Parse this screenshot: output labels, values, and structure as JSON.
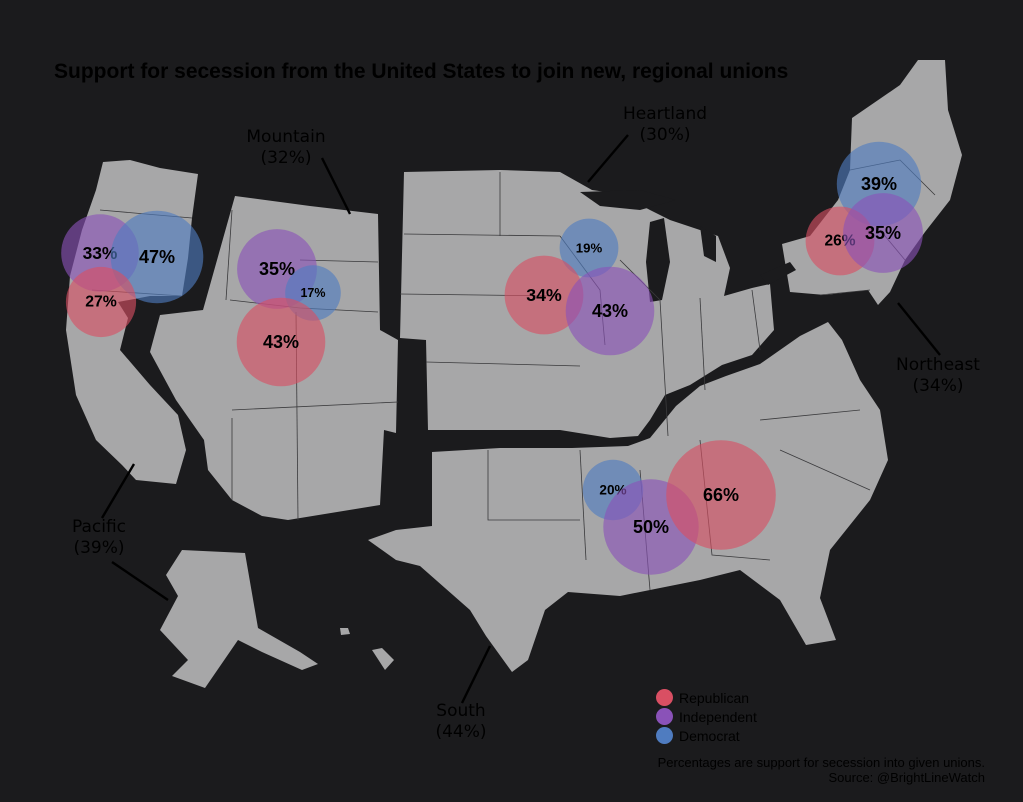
{
  "title": "Support for secession from the United States to join new, regional unions",
  "colors": {
    "background": "#1b1b1d",
    "land": "#a7a7a8",
    "republican": "#d94f63",
    "independent": "#8a52b8",
    "democrat": "#4f7cc0"
  },
  "regions": [
    {
      "name": "Mountain",
      "pct": "(32%)"
    },
    {
      "name": "Heartland",
      "pct": "(30%)"
    },
    {
      "name": "Northeast",
      "pct": "(34%)"
    },
    {
      "name": "Pacific",
      "pct": "(39%)"
    },
    {
      "name": "South",
      "pct": "(44%)"
    }
  ],
  "bubbles": [
    {
      "region": "Pacific",
      "party": "Independent",
      "label": "33%",
      "value": 33
    },
    {
      "region": "Pacific",
      "party": "Democrat",
      "label": "47%",
      "value": 47
    },
    {
      "region": "Pacific",
      "party": "Republican",
      "label": "27%",
      "value": 27
    },
    {
      "region": "Mountain",
      "party": "Independent",
      "label": "35%",
      "value": 35
    },
    {
      "region": "Mountain",
      "party": "Democrat",
      "label": "17%",
      "value": 17
    },
    {
      "region": "Mountain",
      "party": "Republican",
      "label": "43%",
      "value": 43
    },
    {
      "region": "Heartland",
      "party": "Democrat",
      "label": "19%",
      "value": 19
    },
    {
      "region": "Heartland",
      "party": "Republican",
      "label": "34%",
      "value": 34
    },
    {
      "region": "Heartland",
      "party": "Independent",
      "label": "43%",
      "value": 43
    },
    {
      "region": "Northeast",
      "party": "Democrat",
      "label": "39%",
      "value": 39
    },
    {
      "region": "Northeast",
      "party": "Republican",
      "label": "26%",
      "value": 26
    },
    {
      "region": "Northeast",
      "party": "Independent",
      "label": "35%",
      "value": 35
    },
    {
      "region": "South",
      "party": "Democrat",
      "label": "20%",
      "value": 20
    },
    {
      "region": "South",
      "party": "Independent",
      "label": "50%",
      "value": 50
    },
    {
      "region": "South",
      "party": "Republican",
      "label": "66%",
      "value": 66
    }
  ],
  "legend": [
    {
      "party": "Republican",
      "label": "Republican"
    },
    {
      "party": "Independent",
      "label": "Independent"
    },
    {
      "party": "Democrat",
      "label": "Democrat"
    }
  ],
  "note": {
    "line1": "Percentages are support for secession into given unions.",
    "line2": "Source: @BrightLineWatch"
  }
}
